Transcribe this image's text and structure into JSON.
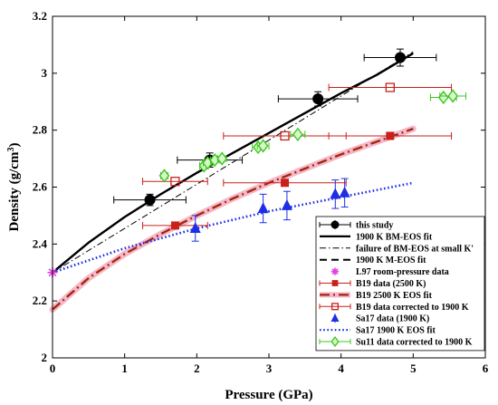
{
  "chart_data": {
    "type": "scatter",
    "xlabel": "Pressure (GPa)",
    "ylabel": "Density (g/cm",
    "ylabel_sup": "3",
    "ylabel_tail": ")",
    "xlim": [
      0,
      6
    ],
    "ylim": [
      2,
      3.2
    ],
    "xticks": [
      "0",
      "1",
      "2",
      "3",
      "4",
      "5",
      "6"
    ],
    "yticks": [
      "2",
      "2.2",
      "2.4",
      "2.6",
      "2.8",
      "3",
      "3.2"
    ],
    "grid": false,
    "legend_position": "bottom-right",
    "series": [
      {
        "name": "this study",
        "kind": "points",
        "marker": "circle",
        "color": "#000000",
        "points": [
          {
            "x": 1.35,
            "y": 2.555,
            "xerr": 0.5,
            "yerr": 0.02
          },
          {
            "x": 2.18,
            "y": 2.695,
            "xerr": 0.45,
            "yerr": 0.025
          },
          {
            "x": 3.68,
            "y": 2.91,
            "xerr": 0.55,
            "yerr": 0.025
          },
          {
            "x": 4.82,
            "y": 3.055,
            "xerr": 0.5,
            "yerr": 0.03
          }
        ]
      },
      {
        "name": "1900 K BM-EOS fit",
        "kind": "line",
        "style": "solid",
        "color": "#000000",
        "x": [
          0,
          0.5,
          1,
          1.5,
          2,
          2.5,
          3,
          3.5,
          4,
          4.5,
          5
        ],
        "y": [
          2.3,
          2.405,
          2.495,
          2.575,
          2.65,
          2.72,
          2.79,
          2.86,
          2.93,
          2.995,
          3.07
        ]
      },
      {
        "name": "failure of BM-EOS at small K'",
        "kind": "line",
        "style": "dashdot",
        "color": "#000000",
        "x": [
          0,
          1,
          2,
          3,
          4,
          5
        ],
        "y": [
          2.3,
          2.455,
          2.61,
          2.765,
          2.92,
          3.075
        ]
      },
      {
        "name": "1900 K M-EOS fit",
        "kind": "line",
        "style": "dashed",
        "color": "#000000",
        "x": [
          0,
          0.5,
          1,
          1.5,
          2,
          2.5,
          3,
          3.5,
          4,
          4.5,
          5
        ],
        "y": [
          2.3,
          2.405,
          2.495,
          2.575,
          2.65,
          2.72,
          2.79,
          2.86,
          2.93,
          2.995,
          3.07
        ]
      },
      {
        "name": "L97 room-pressure data",
        "kind": "points",
        "marker": "star",
        "color": "#e040e0",
        "points": [
          {
            "x": 0.0,
            "y": 2.3
          }
        ]
      },
      {
        "name": "B19 data (2500 K)",
        "kind": "points",
        "marker": "square",
        "color": "#c8201a",
        "points": [
          {
            "x": 1.7,
            "y": 2.465,
            "xerr": 0.45
          },
          {
            "x": 3.22,
            "y": 2.615,
            "xerr": 0.85
          },
          {
            "x": 4.68,
            "y": 2.78,
            "xerr": 0.85
          }
        ]
      },
      {
        "name": "B19 2500 K EOS fit",
        "kind": "line",
        "style": "longdash",
        "color": "#a0280f",
        "shade": "#f6b8c8",
        "x": [
          0,
          0.5,
          1,
          1.5,
          2,
          2.5,
          3,
          3.5,
          4,
          4.5,
          5
        ],
        "y": [
          2.17,
          2.28,
          2.365,
          2.435,
          2.5,
          2.56,
          2.615,
          2.665,
          2.715,
          2.76,
          2.805
        ]
      },
      {
        "name": "B19 data corrected to 1900 K",
        "kind": "points",
        "marker": "open-square",
        "color": "#c8201a",
        "points": [
          {
            "x": 1.7,
            "y": 2.62,
            "xerr": 0.45
          },
          {
            "x": 3.22,
            "y": 2.78,
            "xerr": 0.85
          },
          {
            "x": 4.68,
            "y": 2.95,
            "xerr": 0.85
          }
        ]
      },
      {
        "name": "Sa17 data (1900 K)",
        "kind": "points",
        "marker": "triangle",
        "color": "#1e2ee6",
        "points": [
          {
            "x": 1.98,
            "y": 2.455,
            "yerr": 0.045
          },
          {
            "x": 2.92,
            "y": 2.525,
            "yerr": 0.05
          },
          {
            "x": 3.25,
            "y": 2.535,
            "yerr": 0.05
          },
          {
            "x": 3.92,
            "y": 2.575,
            "yerr": 0.05
          },
          {
            "x": 4.05,
            "y": 2.58,
            "yerr": 0.05
          }
        ]
      },
      {
        "name": "Sa17 1900 K EOS fit",
        "kind": "line",
        "style": "dotted",
        "color": "#1e2ee6",
        "x": [
          0,
          1,
          2,
          3,
          4,
          5
        ],
        "y": [
          2.3,
          2.385,
          2.455,
          2.515,
          2.565,
          2.615
        ]
      },
      {
        "name": "Su11 data corrected to 1900 K",
        "kind": "points",
        "marker": "diamond",
        "color": "#3cc81e",
        "points": [
          {
            "x": 1.55,
            "y": 2.64,
            "xerr": 0.05
          },
          {
            "x": 2.1,
            "y": 2.675,
            "xerr": 0.06
          },
          {
            "x": 2.15,
            "y": 2.685,
            "xerr": 0.06
          },
          {
            "x": 2.25,
            "y": 2.695,
            "xerr": 0.06
          },
          {
            "x": 2.35,
            "y": 2.7,
            "xerr": 0.06
          },
          {
            "x": 2.85,
            "y": 2.74,
            "xerr": 0.08
          },
          {
            "x": 2.92,
            "y": 2.745,
            "xerr": 0.08
          },
          {
            "x": 3.4,
            "y": 2.785,
            "xerr": 0.1
          },
          {
            "x": 5.42,
            "y": 2.915,
            "xerr": 0.18
          },
          {
            "x": 5.55,
            "y": 2.92,
            "xerr": 0.18
          }
        ]
      }
    ]
  }
}
